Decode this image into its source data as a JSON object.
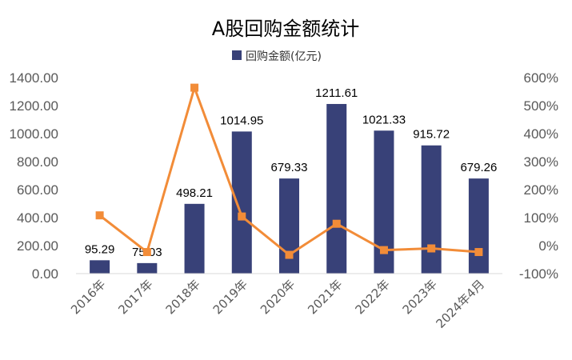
{
  "chart_data": {
    "type": "bar",
    "title": "A股回购金额统计",
    "categories": [
      "2016年",
      "2017年",
      "2018年",
      "2019年",
      "2020年",
      "2021年",
      "2022年",
      "2023年",
      "2024年4月"
    ],
    "series": [
      {
        "name": "回购金额(亿元)",
        "type": "bar",
        "axis": "left",
        "color": "#384178",
        "values": [
          95.29,
          75.03,
          498.21,
          1014.95,
          679.33,
          1211.61,
          1021.33,
          915.72,
          679.26
        ],
        "labels": [
          "95.29",
          "75.03",
          "498.21",
          "1014.95",
          "679.33",
          "1211.61",
          "1021.33",
          "915.72",
          "679.26"
        ]
      },
      {
        "type": "line",
        "axis": "right",
        "color": "#F28C38",
        "values": [
          108,
          -23,
          564,
          104,
          -33,
          78,
          -16,
          -10,
          -23
        ]
      }
    ],
    "y_left": {
      "ylim": [
        0,
        1400
      ],
      "ticks": [
        0,
        200,
        400,
        600,
        800,
        1000,
        1200,
        1400
      ],
      "tick_labels": [
        "0.00",
        "200.00",
        "400.00",
        "600.00",
        "800.00",
        "1000.00",
        "1200.00",
        "1400.00"
      ]
    },
    "y_right": {
      "ylim": [
        -100,
        600
      ],
      "ticks": [
        -100,
        0,
        100,
        200,
        300,
        400,
        500,
        600
      ],
      "tick_labels": [
        "-100%",
        "0%",
        "100%",
        "200%",
        "300%",
        "400%",
        "500%",
        "600%"
      ]
    },
    "grid": false,
    "legend": {
      "position": "top",
      "entries": [
        "回购金额(亿元)"
      ]
    }
  }
}
